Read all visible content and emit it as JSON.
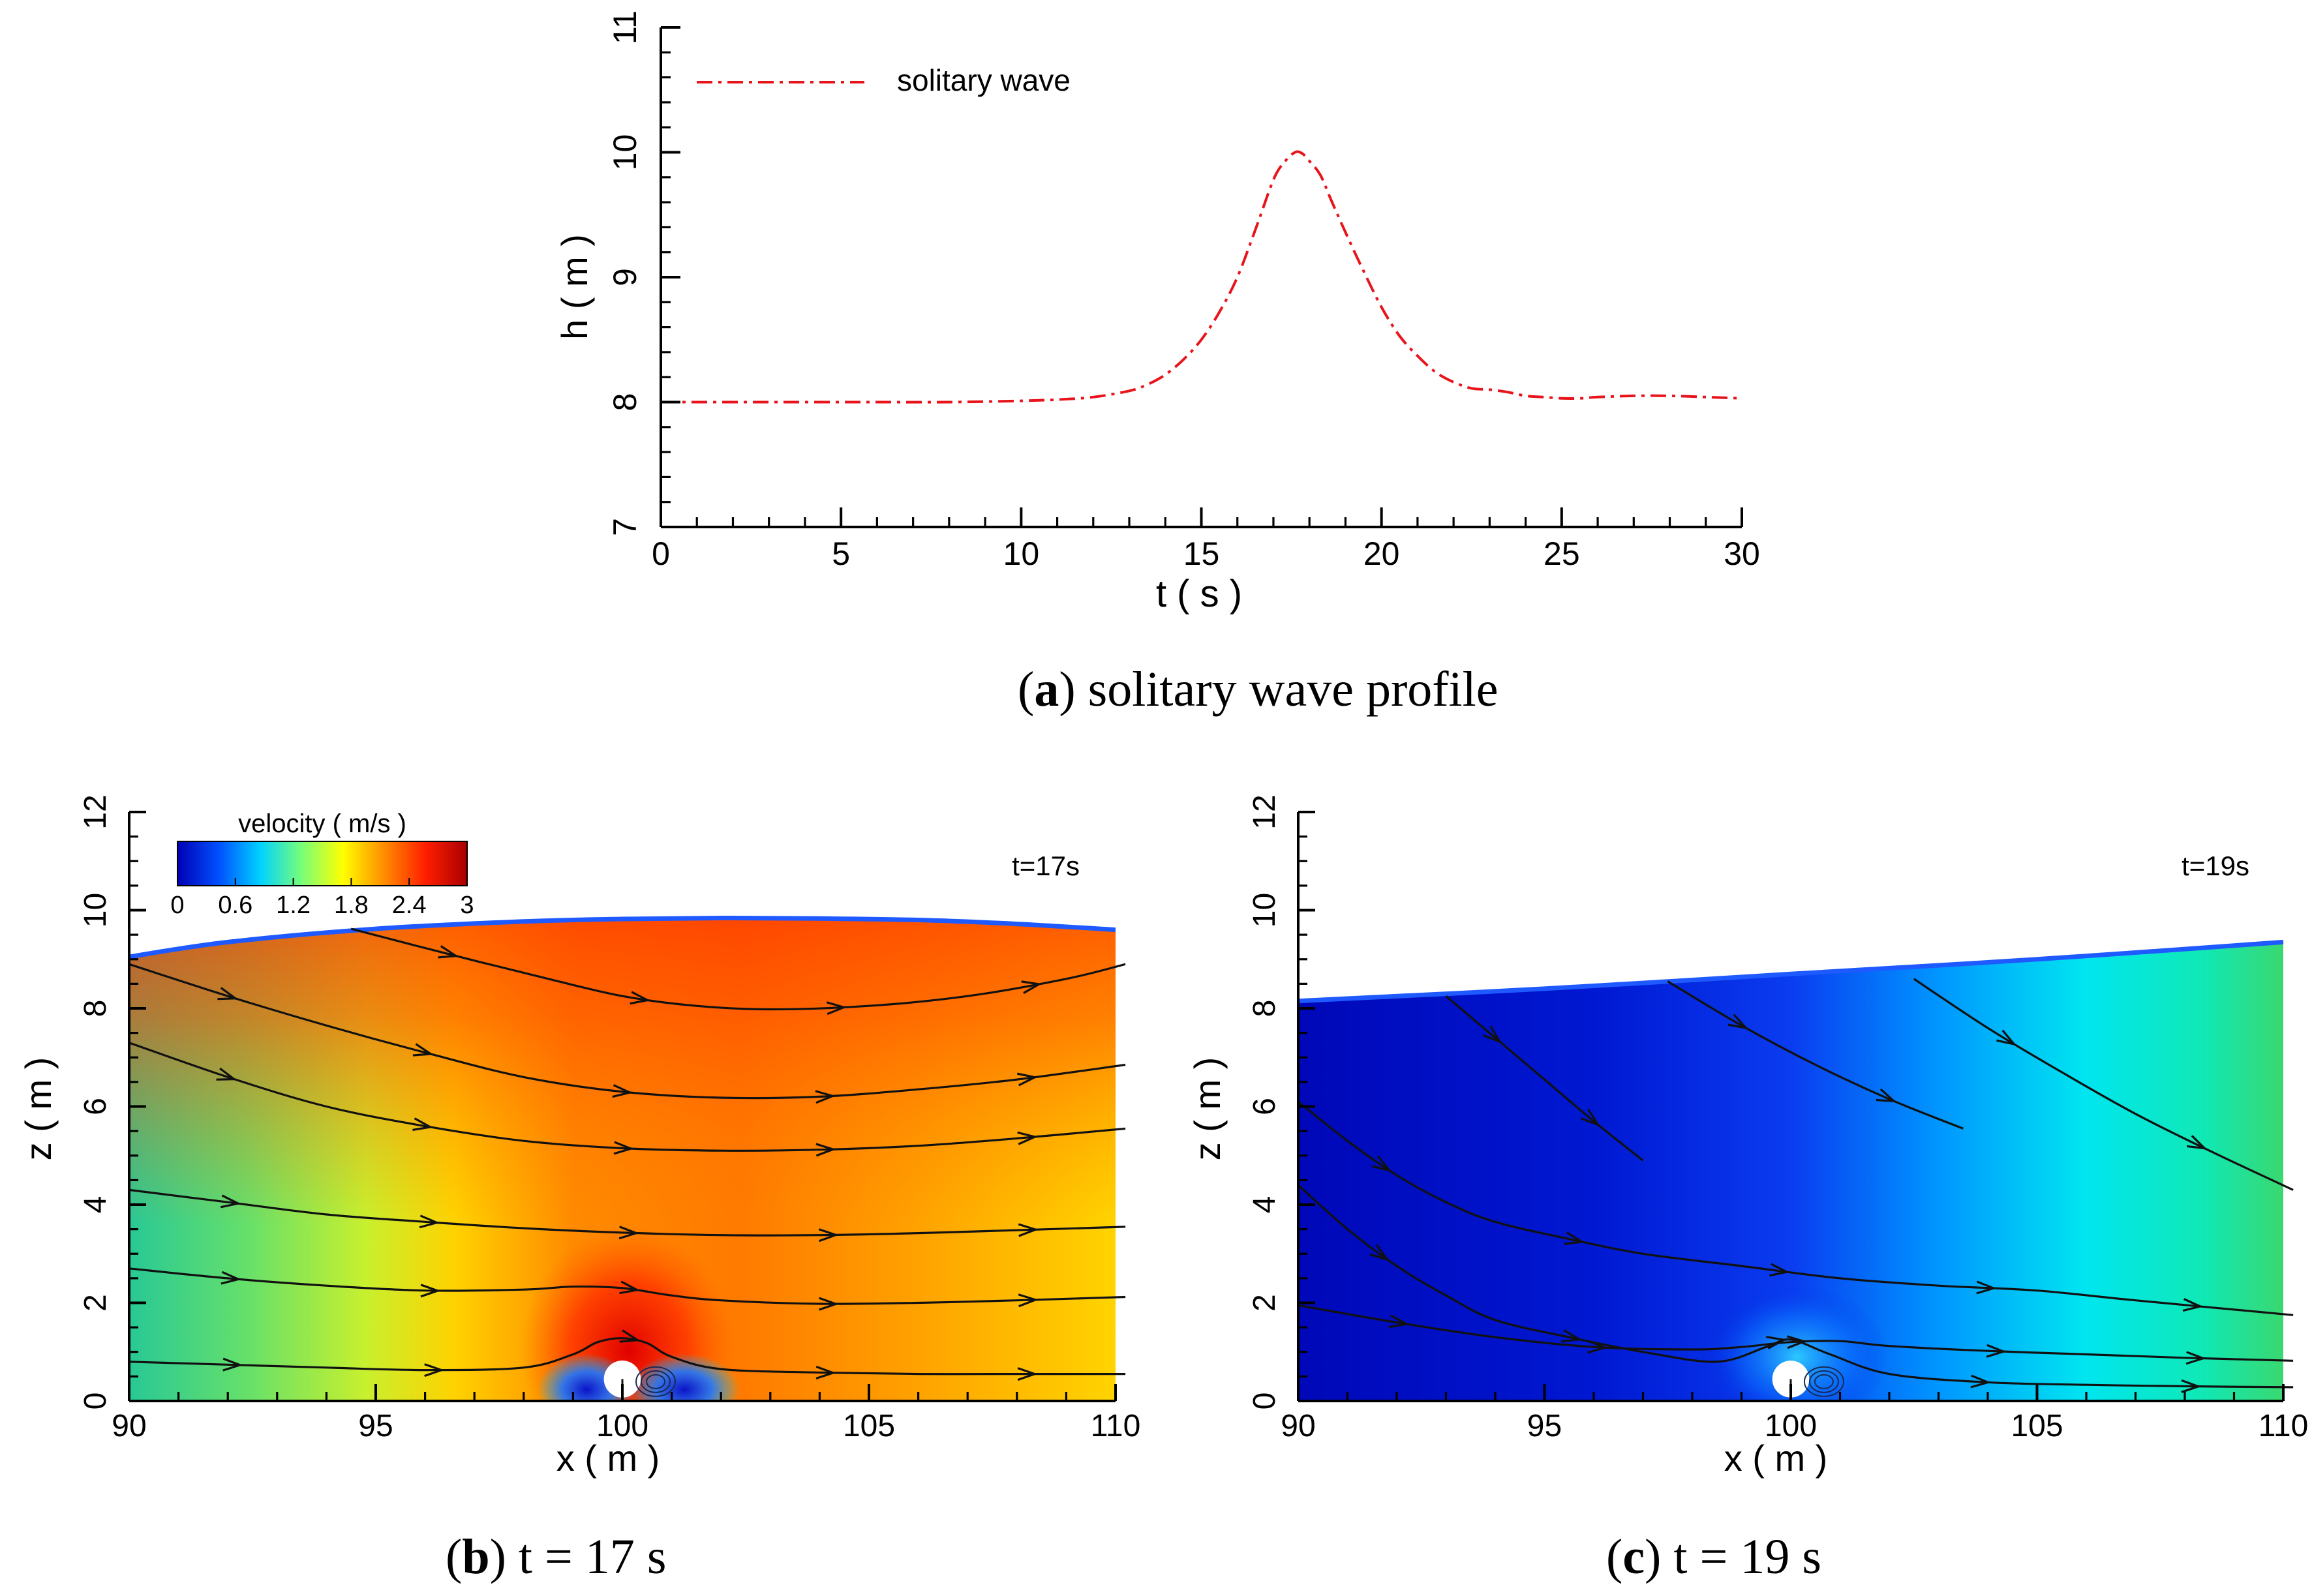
{
  "chart_data": [
    {
      "id": "a",
      "type": "line",
      "caption": {
        "label": "a",
        "text": "solitary wave profile"
      },
      "xlabel": "t ( s )",
      "ylabel": "h ( m )",
      "xlim": [
        0,
        30
      ],
      "ylim": [
        7,
        11
      ],
      "xticks": [
        0,
        5,
        10,
        15,
        20,
        25,
        30
      ],
      "yticks": [
        7,
        8,
        9,
        10,
        11
      ],
      "legend": "top-left",
      "series": [
        {
          "name": "solitary wave",
          "color": "#e8141c",
          "style": "dash-dot",
          "x": [
            0,
            2,
            4,
            6,
            8,
            10,
            11,
            12,
            13,
            13.5,
            14,
            14.5,
            15,
            15.5,
            16,
            16.5,
            17,
            17.3,
            17.6,
            17.8,
            18,
            18.3,
            18.6,
            19,
            19.5,
            20,
            20.5,
            21,
            21.5,
            22,
            22.5,
            23,
            23.5,
            24,
            24.5,
            25,
            25.5,
            26,
            27,
            28,
            29,
            30
          ],
          "y": [
            8.0,
            8.0,
            8.0,
            8.0,
            8.0,
            8.01,
            8.02,
            8.04,
            8.09,
            8.14,
            8.22,
            8.34,
            8.5,
            8.72,
            9.0,
            9.38,
            9.78,
            9.92,
            10.0,
            9.99,
            9.93,
            9.82,
            9.62,
            9.36,
            9.05,
            8.76,
            8.53,
            8.37,
            8.24,
            8.16,
            8.11,
            8.1,
            8.08,
            8.05,
            8.04,
            8.03,
            8.03,
            8.04,
            8.05,
            8.05,
            8.04,
            8.03
          ]
        }
      ]
    },
    {
      "id": "b",
      "type": "heatmap",
      "caption": {
        "label": "b",
        "text": "t = 17 s"
      },
      "annotation": "t=17s",
      "xlabel": "x ( m )",
      "ylabel": "z ( m )",
      "xlim": [
        90,
        110
      ],
      "ylim": [
        0,
        12
      ],
      "xticks": [
        90,
        95,
        100,
        105,
        110
      ],
      "yticks": [
        0,
        2,
        4,
        6,
        8,
        10,
        12
      ],
      "cylinder": {
        "x": 100,
        "z": 0.5,
        "r": 0.5
      },
      "colorbar": {
        "title": "velocity ( m/s )",
        "ticks": [
          "0",
          "0.6",
          "1.2",
          "1.8",
          "2.4",
          "3"
        ],
        "range": [
          0,
          3
        ],
        "stops": [
          "#0000b4",
          "#0050ff",
          "#00d2ff",
          "#78ff78",
          "#ffff00",
          "#ff8c00",
          "#ff1e00",
          "#aa0000"
        ]
      },
      "free_surface": {
        "x": [
          90,
          92,
          95,
          98,
          100,
          102,
          104,
          106,
          108,
          110
        ],
        "z": [
          9.05,
          9.35,
          9.62,
          9.77,
          9.82,
          9.84,
          9.83,
          9.8,
          9.72,
          9.6
        ]
      },
      "streamlines": [
        {
          "x": [
            94.5,
            96.5,
            98.5,
            100,
            101.5,
            103,
            105,
            107,
            109,
            110.2
          ],
          "z": [
            9.62,
            9.1,
            8.6,
            8.25,
            8.05,
            7.98,
            8.05,
            8.25,
            8.6,
            8.9
          ]
        },
        {
          "x": [
            90,
            92,
            94,
            96,
            98,
            100,
            102,
            104,
            106,
            108,
            110.2
          ],
          "z": [
            8.9,
            8.25,
            7.65,
            7.1,
            6.6,
            6.3,
            6.18,
            6.2,
            6.35,
            6.55,
            6.85
          ]
        },
        {
          "x": [
            90,
            92,
            94,
            96,
            98,
            100,
            102,
            104,
            106,
            108,
            110.2
          ],
          "z": [
            7.3,
            6.6,
            6.0,
            5.6,
            5.3,
            5.15,
            5.1,
            5.12,
            5.2,
            5.35,
            5.55
          ]
        },
        {
          "x": [
            90,
            92,
            94,
            96,
            98,
            100,
            102,
            104,
            106,
            108,
            110.2
          ],
          "z": [
            4.3,
            4.05,
            3.8,
            3.65,
            3.52,
            3.43,
            3.38,
            3.38,
            3.42,
            3.48,
            3.55
          ]
        },
        {
          "x": [
            90,
            92,
            94,
            96,
            98,
            99,
            100,
            101,
            102,
            104,
            106,
            108,
            110.2
          ],
          "z": [
            2.7,
            2.5,
            2.35,
            2.25,
            2.27,
            2.33,
            2.3,
            2.15,
            2.05,
            1.98,
            2.0,
            2.05,
            2.12
          ]
        },
        {
          "x": [
            90,
            92,
            94,
            96,
            98,
            99,
            99.5,
            100,
            100.5,
            101,
            102,
            104,
            106,
            108,
            110.2
          ],
          "z": [
            0.8,
            0.74,
            0.68,
            0.63,
            0.68,
            0.95,
            1.2,
            1.28,
            1.18,
            0.9,
            0.65,
            0.58,
            0.55,
            0.55,
            0.55
          ]
        }
      ]
    },
    {
      "id": "c",
      "type": "heatmap",
      "caption": {
        "label": "c",
        "text": "t = 19 s"
      },
      "annotation": "t=19s",
      "xlabel": "x ( m )",
      "ylabel": "z ( m )",
      "xlim": [
        90,
        110
      ],
      "ylim": [
        0,
        12
      ],
      "xticks": [
        90,
        95,
        100,
        105,
        110
      ],
      "yticks": [
        0,
        2,
        4,
        6,
        8,
        10,
        12
      ],
      "cylinder": {
        "x": 100,
        "z": 0.5,
        "r": 0.5
      },
      "colorbar": {
        "range": [
          0,
          3
        ],
        "stops": [
          "#0000b4",
          "#0050ff",
          "#00d2ff",
          "#78ff78",
          "#ffff00",
          "#ff8c00",
          "#ff1e00",
          "#aa0000"
        ]
      },
      "free_surface": {
        "x": [
          90,
          95,
          100,
          105,
          110
        ],
        "z": [
          8.15,
          8.4,
          8.7,
          9.0,
          9.35
        ]
      },
      "streamlines": [
        {
          "x": [
            93,
            94,
            95,
            96,
            97
          ],
          "z": [
            8.25,
            7.4,
            6.55,
            5.7,
            4.9
          ]
        },
        {
          "x": [
            97.5,
            99,
            100.5,
            102,
            103.5
          ],
          "z": [
            8.55,
            7.65,
            6.85,
            6.15,
            5.55
          ]
        },
        {
          "x": [
            102.5,
            104,
            105.5,
            107,
            108.5,
            110.2
          ],
          "z": [
            8.6,
            7.6,
            6.7,
            5.85,
            5.1,
            4.3
          ]
        },
        {
          "x": [
            90,
            91,
            92,
            93,
            94,
            95.5,
            97,
            99,
            101,
            103,
            105,
            107,
            110.2
          ],
          "z": [
            6.1,
            5.3,
            4.6,
            4.05,
            3.65,
            3.3,
            3.0,
            2.75,
            2.5,
            2.35,
            2.25,
            2.05,
            1.75
          ]
        },
        {
          "x": [
            90,
            92,
            94,
            96,
            98,
            99,
            100,
            101,
            102,
            104,
            106,
            108,
            110.2
          ],
          "z": [
            1.95,
            1.6,
            1.3,
            1.1,
            1.05,
            1.1,
            1.2,
            1.22,
            1.12,
            1.02,
            0.95,
            0.88,
            0.82
          ]
        },
        {
          "x": [
            90,
            91,
            92,
            93,
            94,
            95.5,
            97,
            98.5,
            99.5,
            100,
            100.8,
            102,
            104,
            106,
            108,
            110.2
          ],
          "z": [
            4.4,
            3.5,
            2.75,
            2.15,
            1.65,
            1.3,
            1.0,
            0.8,
            1.1,
            1.25,
            0.95,
            0.55,
            0.38,
            0.33,
            0.3,
            0.28
          ]
        }
      ]
    }
  ]
}
